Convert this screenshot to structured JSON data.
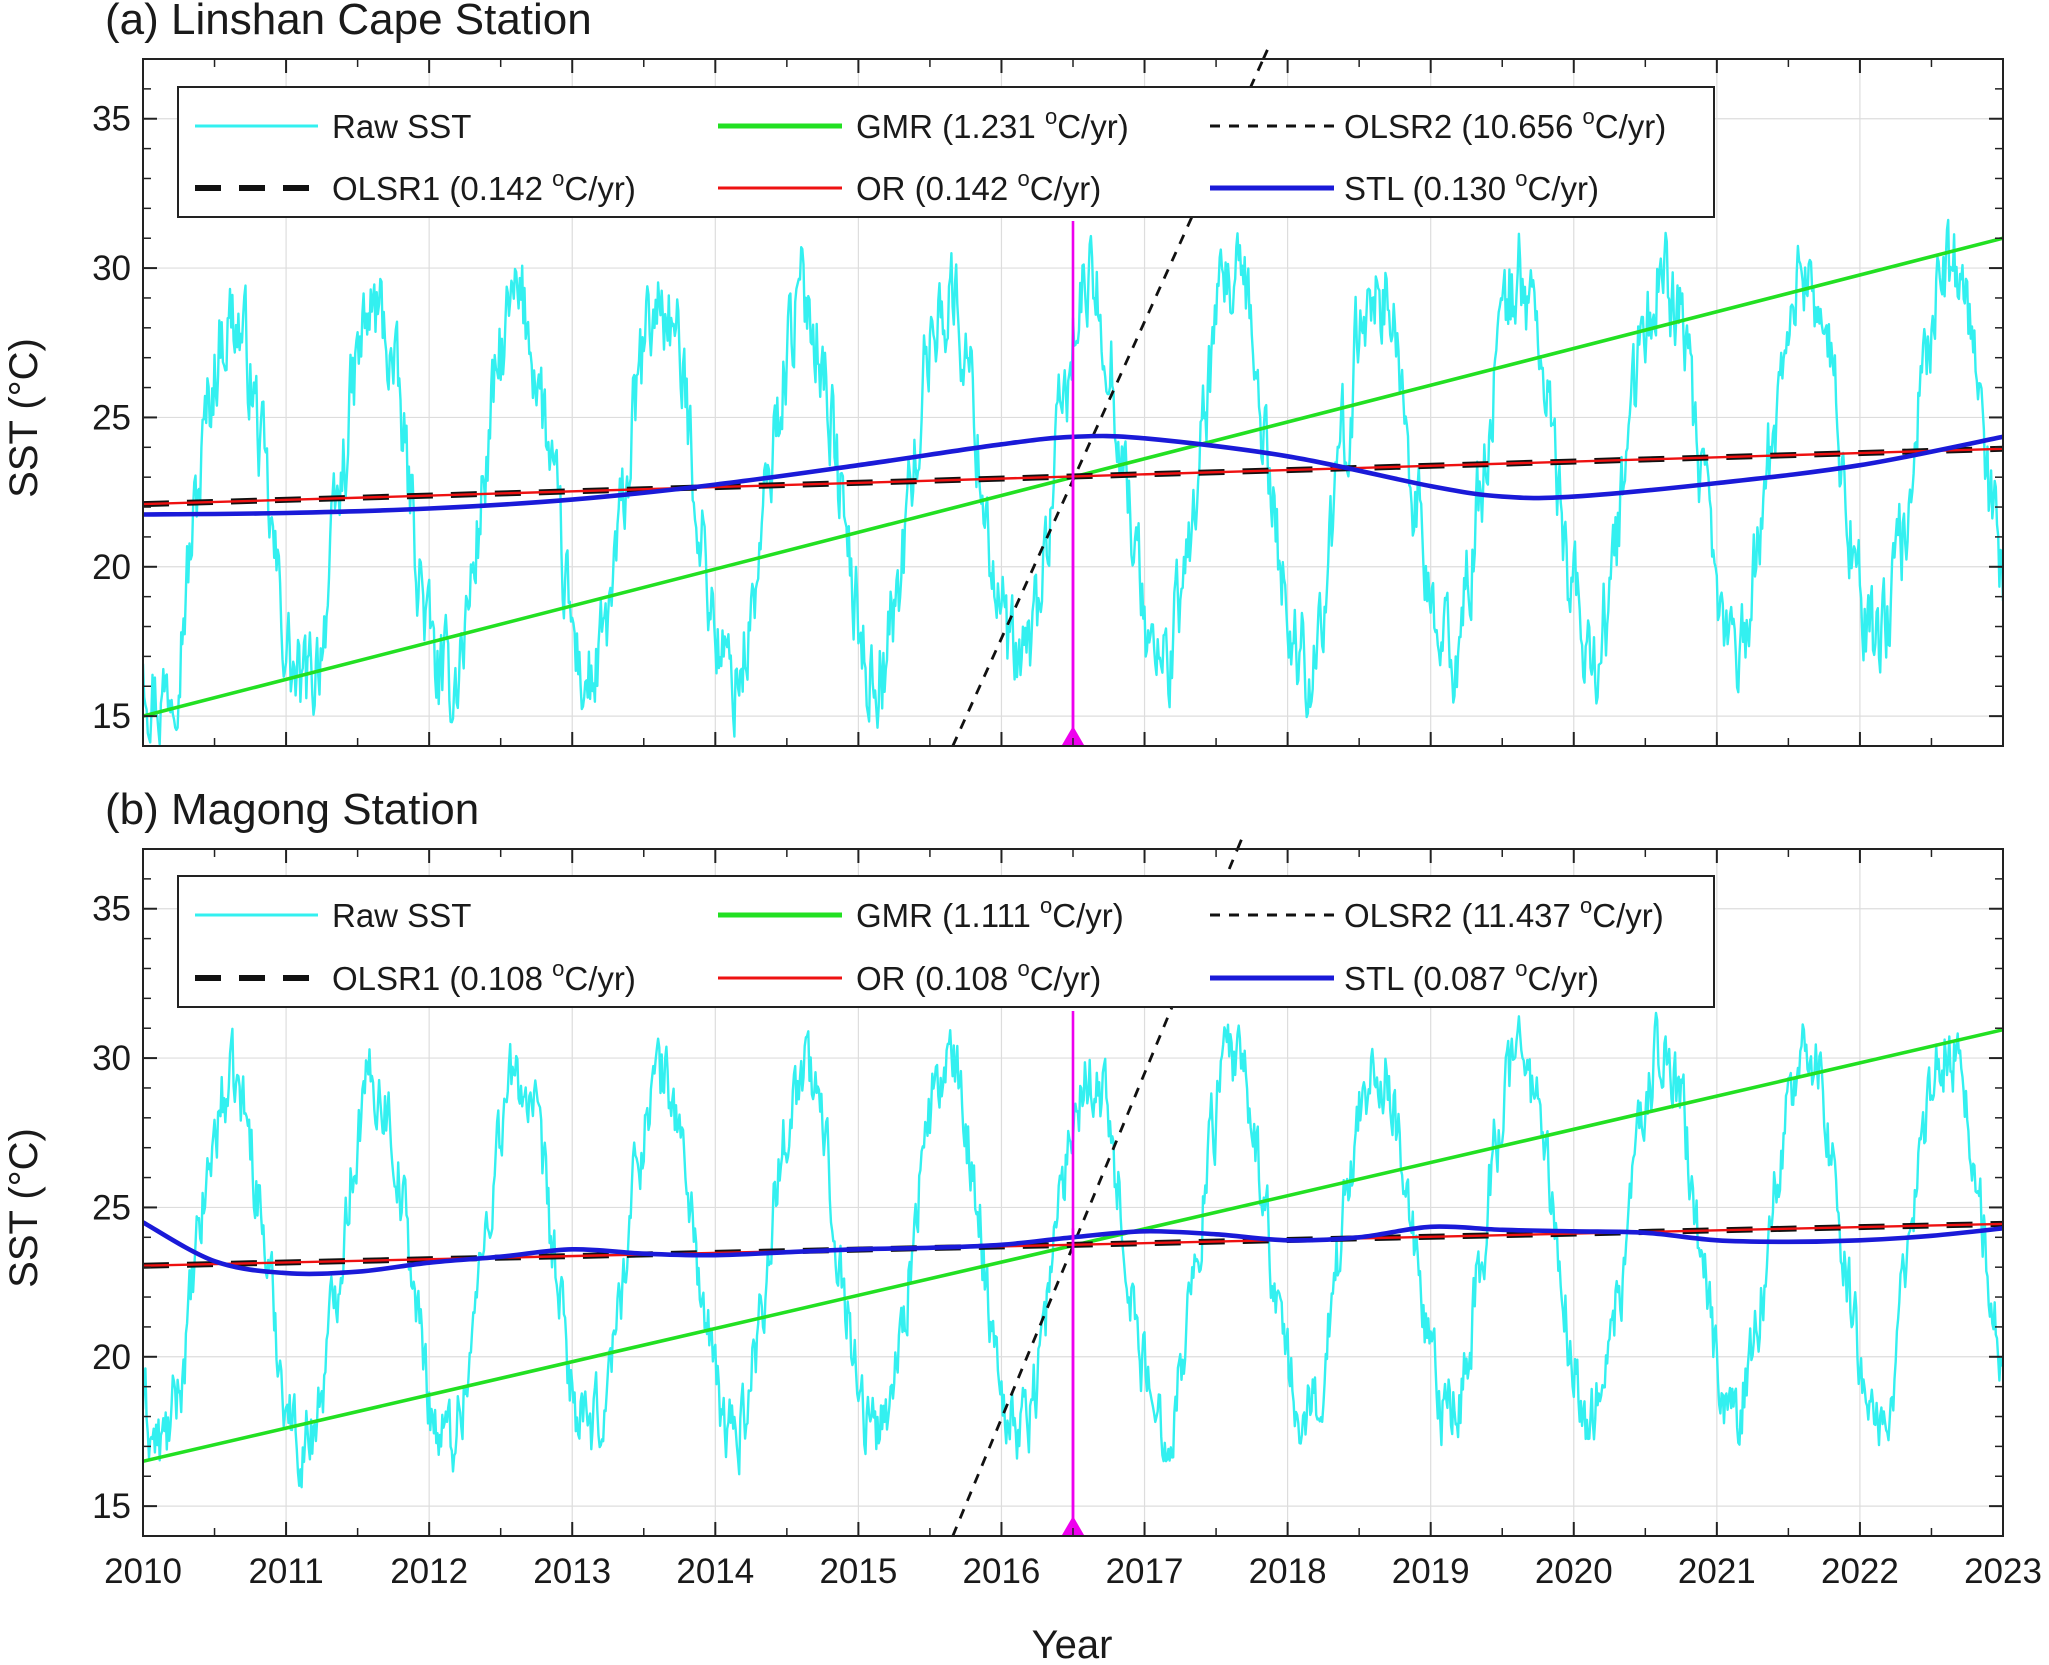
{
  "figure": {
    "xlabel": "Year",
    "unit_base": "C/yr",
    "unit_sup": "o"
  },
  "colors": {
    "raw": "#33f0f0",
    "gmr": "#22e022",
    "olsr1": "#111111",
    "olsr2": "#111111",
    "or": "#ee1111",
    "stl": "#1a1ad8",
    "marker": "#ee00ee",
    "grid": "#dddddd"
  },
  "chart_data": [
    {
      "type": "line",
      "title": "(a) Linshan Cape Station",
      "xlabel": "Year",
      "ylabel": "SST (°C)",
      "xlim": [
        2010,
        2023
      ],
      "ylim": [
        14,
        37
      ],
      "xticks": [
        "2010",
        "2011",
        "2012",
        "2013",
        "2014",
        "2015",
        "2016",
        "2017",
        "2018",
        "2019",
        "2020",
        "2021",
        "2022",
        "2023"
      ],
      "yticks": [
        "15",
        "20",
        "25",
        "30",
        "35"
      ],
      "change_point_year": 2016.5,
      "legend": {
        "raw": "Raw SST",
        "olsr1_name": "OLSR1",
        "olsr1_value": "0.142",
        "gmr_name": "GMR",
        "gmr_value": "1.231",
        "or_name": "OR",
        "or_value": "0.142",
        "olsr2_name": "OLSR2",
        "olsr2_value": "10.656",
        "stl_name": "STL",
        "stl_value": "0.130"
      },
      "raw_sst_model": {
        "mean": 22.9,
        "trend_per_year": 0.142,
        "amplitude": 6.3,
        "peak_phase_year_fraction": 0.62,
        "noise": 1.4,
        "samples_per_year": 120
      },
      "series": [
        {
          "name": "GMR",
          "x": [
            2010,
            2023
          ],
          "y": [
            15.0,
            31.0
          ]
        },
        {
          "name": "OLSR1",
          "x": [
            2010,
            2023
          ],
          "y": [
            22.1,
            23.95
          ]
        },
        {
          "name": "OR",
          "x": [
            2010,
            2023
          ],
          "y": [
            22.1,
            23.95
          ]
        },
        {
          "name": "OLSR2",
          "x": [
            2015.66,
            2017.83
          ],
          "y": [
            14.0,
            37.0
          ]
        },
        {
          "name": "STL",
          "x": [
            2010,
            2011,
            2012,
            2013,
            2014,
            2015,
            2016,
            2016.5,
            2017,
            2018,
            2019,
            2019.5,
            2020,
            2021,
            2022,
            2023
          ],
          "y": [
            21.75,
            21.8,
            21.95,
            22.25,
            22.75,
            23.4,
            24.1,
            24.35,
            24.3,
            23.7,
            22.7,
            22.35,
            22.35,
            22.8,
            23.4,
            24.35
          ]
        }
      ]
    },
    {
      "type": "line",
      "title": "(b) Magong Station",
      "xlabel": "Year",
      "ylabel": "SST (°C)",
      "xlim": [
        2010,
        2023
      ],
      "ylim": [
        14,
        37
      ],
      "xticks": [
        "2010",
        "2011",
        "2012",
        "2013",
        "2014",
        "2015",
        "2016",
        "2017",
        "2018",
        "2019",
        "2020",
        "2021",
        "2022",
        "2023"
      ],
      "yticks": [
        "15",
        "20",
        "25",
        "30",
        "35"
      ],
      "change_point_year": 2016.5,
      "legend": {
        "raw": "Raw SST",
        "olsr1_name": "OLSR1",
        "olsr1_value": "0.108",
        "gmr_name": "GMR",
        "gmr_value": "1.111",
        "or_name": "OR",
        "or_value": "0.108",
        "olsr2_name": "OLSR2",
        "olsr2_value": "11.437",
        "stl_name": "STL",
        "stl_value": "0.087"
      },
      "raw_sst_model": {
        "mean": 23.7,
        "trend_per_year": 0.108,
        "amplitude": 6.0,
        "peak_phase_year_fraction": 0.62,
        "noise": 1.1,
        "samples_per_year": 120
      },
      "series": [
        {
          "name": "GMR",
          "x": [
            2010,
            2023
          ],
          "y": [
            16.5,
            30.95
          ]
        },
        {
          "name": "OLSR1",
          "x": [
            2010,
            2023
          ],
          "y": [
            23.05,
            24.45
          ]
        },
        {
          "name": "OR",
          "x": [
            2010,
            2023
          ],
          "y": [
            23.05,
            24.45
          ]
        },
        {
          "name": "OLSR2",
          "x": [
            2015.66,
            2017.65
          ],
          "y": [
            14.0,
            37.0
          ]
        },
        {
          "name": "STL",
          "x": [
            2010,
            2010.5,
            2011,
            2011.5,
            2012,
            2012.5,
            2013,
            2013.5,
            2014,
            2014.5,
            2015,
            2015.5,
            2016,
            2016.5,
            2017,
            2017.5,
            2018,
            2018.5,
            2019,
            2019.5,
            2020,
            2020.5,
            2021,
            2021.5,
            2022,
            2022.5,
            2023
          ],
          "y": [
            24.5,
            23.2,
            22.8,
            22.85,
            23.15,
            23.35,
            23.6,
            23.45,
            23.4,
            23.5,
            23.6,
            23.65,
            23.75,
            24.0,
            24.2,
            24.1,
            23.9,
            24.0,
            24.35,
            24.25,
            24.2,
            24.15,
            23.9,
            23.85,
            23.9,
            24.05,
            24.3
          ]
        }
      ]
    }
  ]
}
